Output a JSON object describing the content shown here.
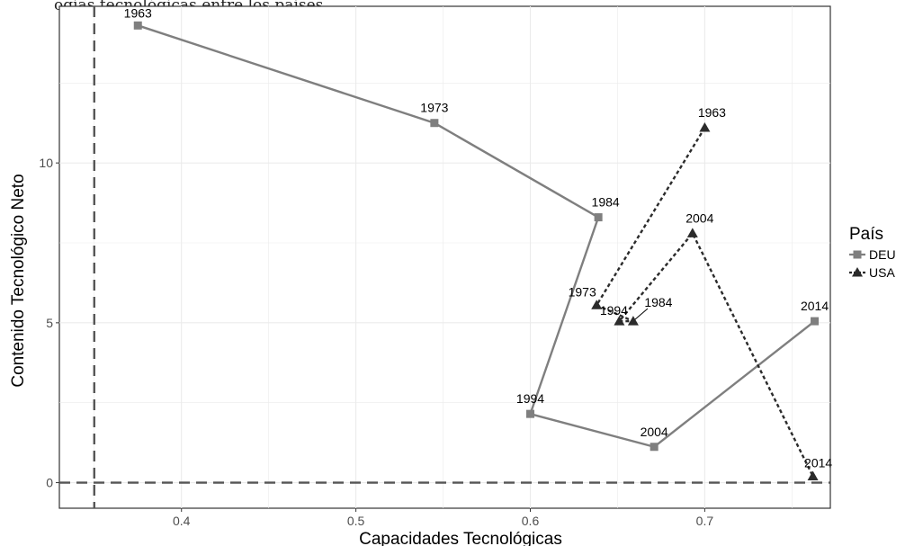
{
  "top_caption_fragment": "ogías tecnológicas entre los países",
  "chart_data": {
    "type": "line",
    "title": "",
    "xlabel": "Capacidades Tecnológicas",
    "ylabel": "Contenido Tecnológico Neto",
    "xlim": [
      0.33,
      0.772
    ],
    "ylim": [
      -0.8,
      14.9
    ],
    "x_ticks": [
      0.4,
      0.5,
      0.6,
      0.7
    ],
    "x_tick_labels": [
      "0.4",
      "0.5",
      "0.6",
      "0.7"
    ],
    "y_ticks": [
      0,
      5,
      10
    ],
    "y_tick_labels": [
      "0",
      "5",
      "10"
    ],
    "grid": true,
    "reference_lines": [
      {
        "axis": "x",
        "value": 0.35,
        "style": "dashed"
      },
      {
        "axis": "y",
        "value": 0,
        "style": "dashed"
      }
    ],
    "legend": {
      "title": "País",
      "position": "right"
    },
    "series": [
      {
        "name": "DEU",
        "color": "#7f7f7f",
        "line": "solid",
        "marker": "square",
        "points": [
          {
            "label": "1963",
            "x": 0.375,
            "y": 14.3
          },
          {
            "label": "1973",
            "x": 0.545,
            "y": 11.25
          },
          {
            "label": "1984",
            "x": 0.639,
            "y": 8.3
          },
          {
            "label": "1994",
            "x": 0.6,
            "y": 2.15
          },
          {
            "label": "2004",
            "x": 0.671,
            "y": 1.12
          },
          {
            "label": "2014",
            "x": 0.763,
            "y": 5.05
          }
        ]
      },
      {
        "name": "USA",
        "color": "#2b2b2b",
        "line": "dotted",
        "marker": "triangle",
        "points": [
          {
            "label": "1963",
            "x": 0.7,
            "y": 11.1
          },
          {
            "label": "1973",
            "x": 0.638,
            "y": 5.55
          },
          {
            "label": "1984",
            "x": 0.659,
            "y": 5.05
          },
          {
            "label": "1994",
            "x": 0.651,
            "y": 5.05
          },
          {
            "label": "2004",
            "x": 0.693,
            "y": 7.8
          },
          {
            "label": "2014",
            "x": 0.762,
            "y": 0.2
          }
        ]
      }
    ]
  }
}
